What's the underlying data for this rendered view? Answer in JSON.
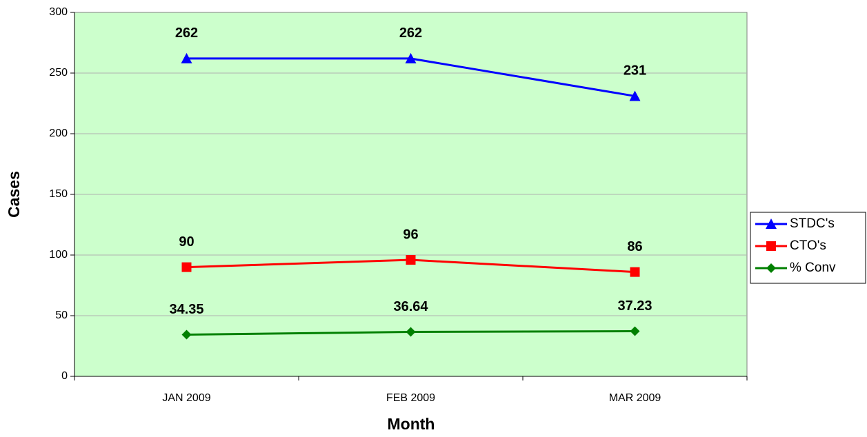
{
  "chart_data": {
    "type": "line",
    "xlabel": "Month",
    "ylabel": "Cases",
    "categories": [
      "JAN 2009",
      "FEB 2009",
      "MAR 2009"
    ],
    "series": [
      {
        "name": "STDC's",
        "color": "#0000ff",
        "marker": "triangle",
        "values": [
          262,
          262,
          231
        ]
      },
      {
        "name": "CTO's",
        "color": "#ff0000",
        "marker": "square",
        "values": [
          90,
          96,
          86
        ]
      },
      {
        "name": "% Conv",
        "color": "#008000",
        "marker": "diamond",
        "values": [
          34.35,
          36.64,
          37.23
        ]
      }
    ],
    "ylim": [
      0,
      300
    ],
    "yticks": [
      0,
      50,
      100,
      150,
      200,
      250,
      300
    ],
    "grid": true,
    "legend": "right",
    "background": "#ccffcc"
  }
}
